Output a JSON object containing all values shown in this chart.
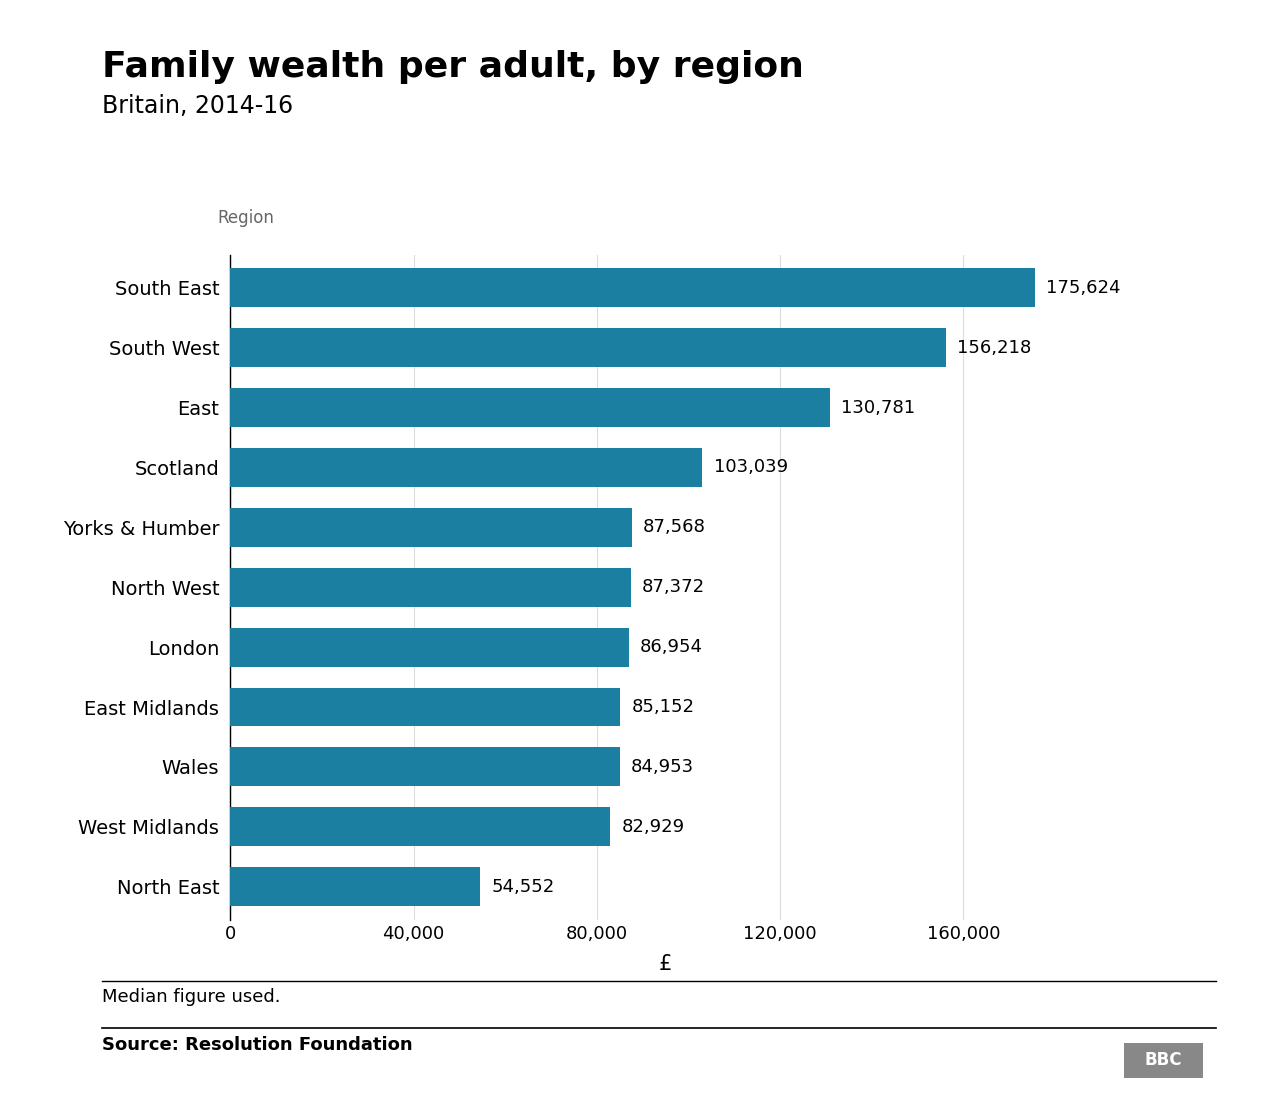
{
  "title": "Family wealth per adult, by region",
  "subtitle": "Britain, 2014-16",
  "ylabel_label": "Region",
  "xlabel_label": "£",
  "regions": [
    "South East",
    "South West",
    "East",
    "Scotland",
    "Yorks & Humber",
    "North West",
    "London",
    "East Midlands",
    "Wales",
    "West Midlands",
    "North East"
  ],
  "values": [
    175624,
    156218,
    130781,
    103039,
    87568,
    87372,
    86954,
    85152,
    84953,
    82929,
    54552
  ],
  "bar_color": "#1a7fa0",
  "background_color": "#ffffff",
  "note": "Median figure used.",
  "source": "Source: Resolution Foundation",
  "xlim": [
    0,
    190000
  ],
  "xticks": [
    0,
    40000,
    80000,
    120000,
    160000
  ],
  "title_fontsize": 26,
  "subtitle_fontsize": 17,
  "region_label_fontsize": 12,
  "ylabel_tick_fontsize": 14,
  "tick_fontsize": 13,
  "annot_fontsize": 13,
  "note_fontsize": 13,
  "source_fontsize": 13
}
